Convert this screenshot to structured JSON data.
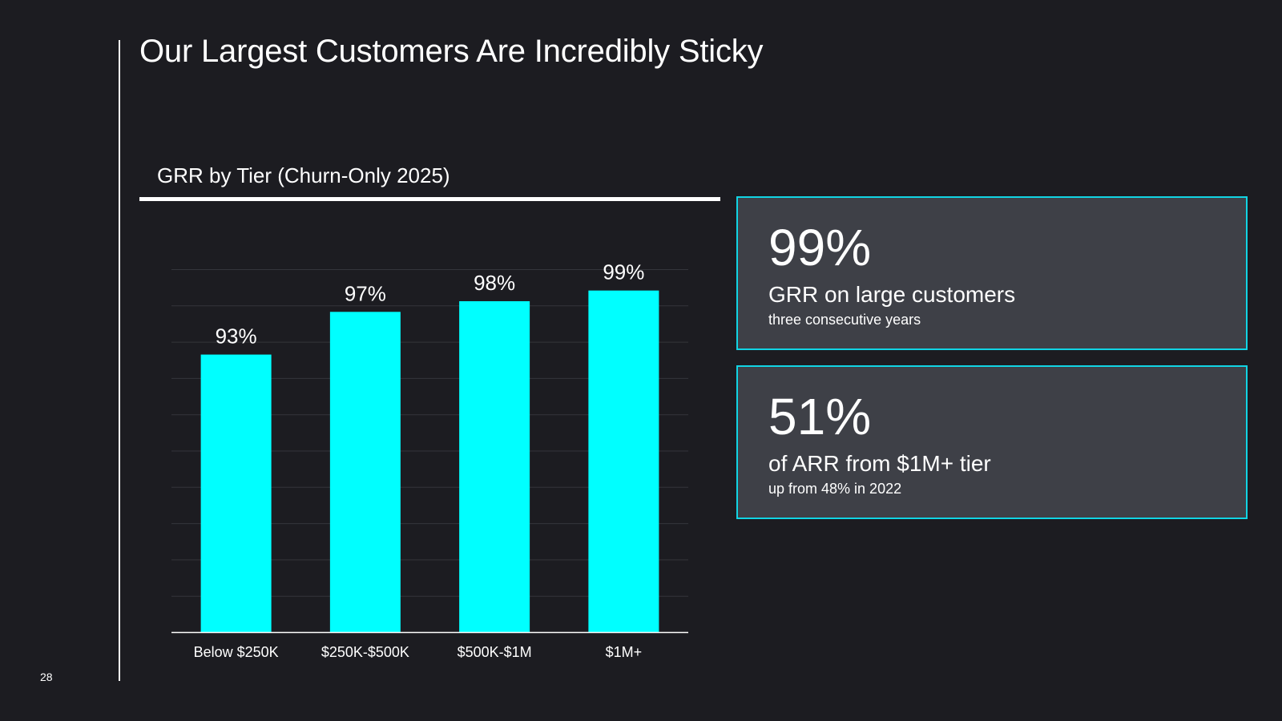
{
  "slide": {
    "title": "Our Largest Customers Are Incredibly Sticky",
    "page_number": "28"
  },
  "chart_data": {
    "type": "bar",
    "title": "GRR by Tier (Churn-Only 2025)",
    "categories": [
      "Below $250K",
      "$250K-$500K",
      "$500K-$1M",
      "$1M+"
    ],
    "values": [
      93,
      97,
      98,
      99
    ],
    "data_labels": [
      "93%",
      "97%",
      "98%",
      "99%"
    ],
    "ylim": [
      67,
      101
    ],
    "grid": true,
    "bar_color": "#00ffff",
    "xlabel": "",
    "ylabel": ""
  },
  "kpis": [
    {
      "value": "99%",
      "label": "GRR on large customers",
      "sub": "three consecutive years"
    },
    {
      "value": "51%",
      "label": "of ARR from $1M+ tier",
      "sub": "up from 48% in 2022"
    }
  ],
  "colors": {
    "background": "#1c1c21",
    "accent": "#00ffff",
    "card_border": "#11d4e4",
    "card_fill": "#3e4047",
    "text": "#ffffff"
  }
}
